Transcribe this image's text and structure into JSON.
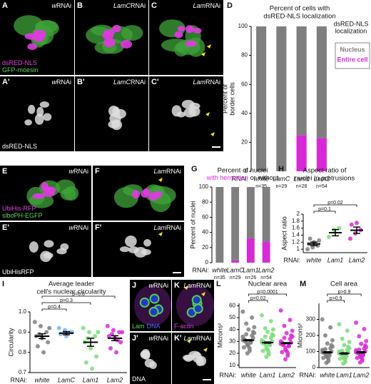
{
  "images": [
    {
      "label": "A",
      "title_italic": "w",
      "title_rest": "RNAi",
      "stains": [
        [
          {
            "text": "dsRED-NLS",
            "color": "#e040e0"
          }
        ],
        [
          {
            "text": "GFP-moesin",
            "color": "#5cd65c"
          }
        ]
      ]
    },
    {
      "label": "B",
      "title_italic": "LamC",
      "title_rest": "RNAi",
      "stains": []
    },
    {
      "label": "C",
      "title_italic": "Lam",
      "title_rest": "RNAi",
      "stains": []
    },
    {
      "label": "A'",
      "title_italic": "w",
      "title_rest": "RNAi",
      "stains": [
        [
          {
            "text": "dsRED-NLS",
            "color": "#ffffff"
          }
        ]
      ]
    },
    {
      "label": "B'",
      "title_italic": "LamC",
      "title_rest": "RNAi",
      "stains": []
    },
    {
      "label": "C'",
      "title_italic": "Lam",
      "title_rest": "RNAi",
      "stains": []
    },
    {
      "label": "E",
      "title_italic": "w",
      "title_rest": "RNAi",
      "stains": [
        [
          {
            "text": "UbiHis-RFP",
            "color": "#e040e0"
          }
        ],
        [
          {
            "text": "slboPH-EGFP",
            "color": "#5cd65c"
          }
        ]
      ]
    },
    {
      "label": "F",
      "title_italic": "Lam",
      "title_rest": "RNAi",
      "stains": []
    },
    {
      "label": "E'",
      "title_italic": "w",
      "title_rest": "RNAi",
      "stains": [
        [
          {
            "text": "UbiHisRFP",
            "color": "#ffffff"
          }
        ]
      ]
    },
    {
      "label": "F'",
      "title_italic": "Lam",
      "title_rest": "RNAi",
      "stains": []
    },
    {
      "label": "J",
      "title_italic": "w",
      "title_rest": "RNAi",
      "stains": [
        [
          {
            "text": "Lam",
            "color": "#5cd65c"
          },
          {
            "text": "DNA",
            "color": "#4a6cff"
          }
        ]
      ]
    },
    {
      "label": "K",
      "title_italic": "Lam",
      "title_rest": "RNAi",
      "stains": [
        [
          {
            "text": "F-actin",
            "color": "#e040e0"
          }
        ]
      ]
    },
    {
      "label": "J'",
      "title_italic": "w",
      "title_rest": "RNAi",
      "stains": [
        [
          {
            "text": "DNA",
            "color": "#ffffff"
          }
        ]
      ]
    },
    {
      "label": "K'",
      "title_italic": "Lam",
      "title_rest": "RNAi",
      "stains": []
    }
  ],
  "chart_data": [
    {
      "type": "stacked-bar",
      "panel": "D",
      "title": [
        "Percent of cells with",
        "dsRED-NLS localization"
      ],
      "y_label": [
        "Percent of",
        "border cells"
      ],
      "x_prefix": "RNAi:",
      "categories": [
        "white",
        "LamC",
        "Lam1",
        "Lam2"
      ],
      "n_labels": [
        "n=35",
        "n=29",
        "n=26",
        "n=54"
      ],
      "series": [
        {
          "name": "Entire cell",
          "color": "#d62ad6",
          "values": [
            0,
            0,
            25,
            23
          ]
        },
        {
          "name": "Nucleus",
          "color": "#7f7f7f",
          "values": [
            100,
            100,
            75,
            77
          ]
        }
      ],
      "legend": "right",
      "legend_title": [
        "dsRED-NLS",
        "localization"
      ],
      "ylim": [
        0,
        100
      ],
      "yticks": [
        0,
        20,
        40,
        60,
        80,
        100
      ]
    },
    {
      "type": "stacked-bar",
      "panel": "G",
      "title": [
        "Percent of nuclei"
      ],
      "title_connector": "or",
      "y_label": [
        "Percent of nuclei"
      ],
      "x_prefix": "RNAi:",
      "categories": [
        "white",
        "LamC",
        "Lam1",
        "Lam2"
      ],
      "n_labels": [
        "n=35",
        "n=29",
        "n=26",
        "n=54"
      ],
      "series": [
        {
          "name": "with herniation",
          "color": "#d62ad6",
          "values": [
            0,
            3,
            32,
            28
          ]
        },
        {
          "name": "without",
          "color": "#7f7f7f",
          "values": [
            100,
            97,
            68,
            72
          ]
        }
      ],
      "legend": "title",
      "ylim": [
        0,
        100
      ],
      "yticks": [
        0,
        20,
        40,
        60,
        80,
        100
      ]
    },
    {
      "type": "dot",
      "panel": "H",
      "title": [
        "Aspect ratio of",
        "nuclei in protrusions"
      ],
      "y_label": [
        "Aspect ratio"
      ],
      "x_prefix": "RNAi:",
      "categories": [
        "white",
        "Lam1",
        "Lam2"
      ],
      "colors": [
        "#7f7f7f",
        "#7ddc7d",
        "#d62ad6"
      ],
      "points": [
        [
          1.0,
          1.05,
          1.1,
          1.15,
          1.2,
          1.25,
          1.3
        ],
        [
          1.35,
          1.55,
          1.6
        ],
        [
          1.3,
          1.45,
          1.55,
          1.7,
          1.75
        ]
      ],
      "means": [
        1.15,
        1.47,
        1.54
      ],
      "errors": [
        0.05,
        0.09,
        0.09
      ],
      "comparisons": [
        {
          "label": "p=0.1",
          "pair": [
            "white",
            "Lam1"
          ]
        },
        {
          "label": "p=0.02",
          "pair": [
            "white",
            "Lam2"
          ]
        }
      ],
      "ylim": [
        0.9,
        2
      ],
      "yticks": [
        1,
        1.2,
        1.4,
        1.6,
        1.8,
        2
      ]
    },
    {
      "type": "dot",
      "panel": "I",
      "title": [
        "Average leader",
        "cell's nuclear circularity"
      ],
      "y_label": [
        "Circularity"
      ],
      "x_prefix": "RNAi:",
      "categories": [
        "white",
        "LamC",
        "Lam1",
        "Lam2"
      ],
      "colors": [
        "#7f7f7f",
        "#7ab8f0",
        "#7ddc7d",
        "#d62ad6"
      ],
      "points": [
        [
          0.95,
          0.93,
          0.9,
          0.88,
          0.87,
          0.85,
          0.83,
          0.8,
          0.92,
          0.89
        ],
        [
          0.92,
          0.91,
          0.9,
          0.89,
          0.88,
          0.9
        ],
        [
          0.92,
          0.9,
          0.88,
          0.85,
          0.82,
          0.78,
          0.75,
          0.72,
          0.9,
          0.87
        ],
        [
          0.93,
          0.91,
          0.9,
          0.88,
          0.87,
          0.85,
          0.82,
          0.8,
          0.9,
          0.89,
          0.86
        ]
      ],
      "means": [
        0.88,
        0.895,
        0.85,
        0.87
      ],
      "errors": [
        0.012,
        0.008,
        0.02,
        0.012
      ],
      "comparisons": [
        {
          "label": "p=0.4",
          "pair": [
            "white",
            "LamC"
          ]
        },
        {
          "label": "p=0.3",
          "pair": [
            "white",
            "Lam1"
          ]
        },
        {
          "label": "p=0.8",
          "pair": [
            "white",
            "Lam2"
          ]
        }
      ],
      "ylim": [
        0.7,
        1
      ],
      "yticks": [
        0.7,
        0.8,
        0.9,
        {
          "value": 1,
          "label": "1.0"
        }
      ]
    },
    {
      "type": "dot",
      "panel": "L",
      "title": [
        "Nuclear area"
      ],
      "y_label": [
        "Microns²"
      ],
      "x_prefix": "RNAi:",
      "categories": [
        "white",
        "Lam1",
        "Lam2"
      ],
      "colors": [
        "#7f7f7f",
        "#7ddc7d",
        "#d62ad6"
      ],
      "points": [
        [
          31,
          28,
          35,
          25,
          40,
          33,
          30,
          22,
          37,
          45,
          29,
          34,
          27,
          50,
          32,
          26,
          38,
          31,
          24,
          42,
          36,
          30,
          55,
          20
        ],
        [
          29,
          26,
          33,
          22,
          38,
          30,
          28,
          19,
          35,
          41,
          27,
          31,
          24,
          47,
          30,
          23,
          36,
          29,
          21,
          40,
          34,
          27,
          52,
          17
        ],
        [
          28,
          25,
          32,
          21,
          37,
          29,
          27,
          18,
          34,
          43,
          26,
          30,
          23,
          48,
          29,
          22,
          35,
          28,
          20,
          39,
          33,
          26,
          56,
          15
        ]
      ],
      "means": [
        31,
        29,
        28.5
      ],
      "errors": [
        0.5,
        0.5,
        0.5
      ],
      "comparisons": [
        {
          "label": "p=0.02",
          "pair": [
            "white",
            "Lam1"
          ]
        },
        {
          "label": "p=0.0001",
          "pair": [
            "white",
            "Lam2"
          ]
        }
      ],
      "ylim": [
        8,
        62
      ],
      "yticks": [
        10,
        20,
        30,
        40,
        50,
        60
      ]
    },
    {
      "type": "dot",
      "panel": "M",
      "title": [
        "Cell area"
      ],
      "y_label": [
        "Microns²"
      ],
      "x_prefix": "RNAi:",
      "categories": [
        "white",
        "Lam1",
        "Lam2"
      ],
      "colors": [
        "#7f7f7f",
        "#7ddc7d",
        "#d62ad6"
      ],
      "points": [
        [
          95,
          80,
          120,
          60,
          150,
          100,
          90,
          40,
          130,
          200,
          85,
          110,
          70,
          250,
          105,
          65,
          140,
          95,
          55,
          170,
          115,
          75,
          300,
          30
        ],
        [
          88,
          75,
          110,
          55,
          140,
          95,
          82,
          35,
          120,
          180,
          78,
          100,
          62,
          230,
          92,
          58,
          130,
          86,
          50,
          160,
          105,
          70,
          270,
          25
        ],
        [
          95,
          82,
          118,
          60,
          148,
          102,
          90,
          42,
          128,
          195,
          86,
          108,
          68,
          240,
          100,
          64,
          138,
          94,
          54,
          165,
          112,
          76,
          280,
          32
        ]
      ],
      "means": [
        95,
        88,
        95
      ],
      "errors": [
        4,
        4,
        4
      ],
      "comparisons": [
        {
          "label": "p>0.9",
          "pair": [
            "white",
            "Lam1"
          ]
        },
        {
          "label": "p>0.9",
          "pair": [
            "white",
            "Lam2"
          ]
        }
      ],
      "ylim": [
        0,
        400
      ],
      "yticks": [
        0,
        100,
        200,
        300
      ]
    }
  ]
}
